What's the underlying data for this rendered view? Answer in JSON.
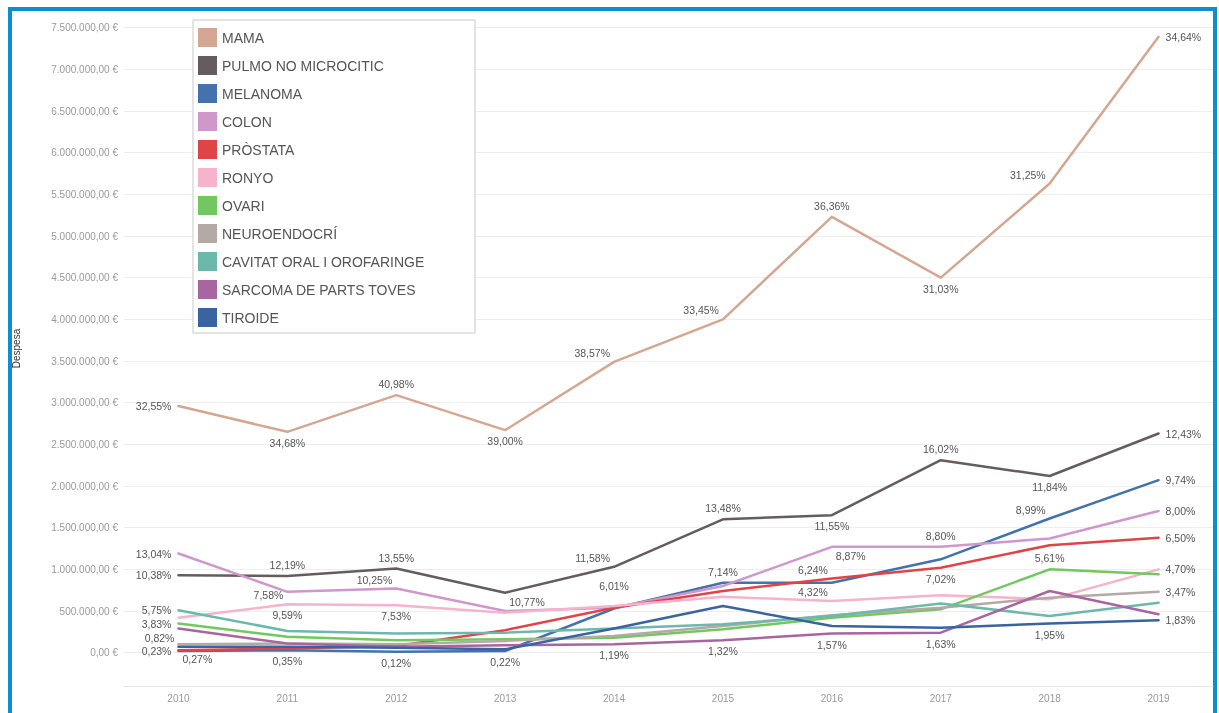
{
  "chart_data": {
    "type": "line",
    "ylabel": "Despesa",
    "categories": [
      "2010",
      "2011",
      "2012",
      "2013",
      "2014",
      "2015",
      "2016",
      "2017",
      "2018",
      "2019"
    ],
    "ylim": [
      -400000,
      7700000
    ],
    "yticks": [
      {
        "value": 0,
        "label": "0,00 €"
      },
      {
        "value": 500000,
        "label": "500.000,00 €"
      },
      {
        "value": 1000000,
        "label": "1.000.000,00 €"
      },
      {
        "value": 1500000,
        "label": "1.500.000,00 €"
      },
      {
        "value": 2000000,
        "label": "2.000.000,00 €"
      },
      {
        "value": 2500000,
        "label": "2.500.000,00 €"
      },
      {
        "value": 3000000,
        "label": "3.000.000,00 €"
      },
      {
        "value": 3500000,
        "label": "3.500.000,00 €"
      },
      {
        "value": 4000000,
        "label": "4.000.000,00 €"
      },
      {
        "value": 4500000,
        "label": "4.500.000,00 €"
      },
      {
        "value": 5000000,
        "label": "5.000.000,00 €"
      },
      {
        "value": 5500000,
        "label": "5.500.000,00 €"
      },
      {
        "value": 6000000,
        "label": "6.000.000,00 €"
      },
      {
        "value": 6500000,
        "label": "6.500.000,00 €"
      },
      {
        "value": 7000000,
        "label": "7.000.000,00 €"
      },
      {
        "value": 7500000,
        "label": "7.500.000,00 €"
      }
    ],
    "grid": "y",
    "legend": "top left",
    "series": [
      {
        "name": "MAMA",
        "color": "#d4a792",
        "values": [
          2960000,
          2650000,
          3090000,
          2670000,
          3490000,
          4000000,
          5230000,
          4500000,
          5630000,
          7390000
        ]
      },
      {
        "name": "PULMO NO MICROCITIC",
        "color": "#655d5d",
        "values": [
          930000,
          920000,
          1010000,
          720000,
          1030000,
          1600000,
          1650000,
          2310000,
          2120000,
          2630000
        ]
      },
      {
        "name": "MELANOMA",
        "color": "#4472ac",
        "values": [
          20000,
          30000,
          10000,
          20000,
          530000,
          840000,
          840000,
          1120000,
          1610000,
          2070000
        ]
      },
      {
        "name": "COLON",
        "color": "#cf97cc",
        "values": [
          1190000,
          730000,
          770000,
          500000,
          540000,
          800000,
          1270000,
          1270000,
          1370000,
          1700000
        ]
      },
      {
        "name": "PRÒSTATA",
        "color": "#e04446",
        "values": [
          30000,
          50000,
          80000,
          270000,
          540000,
          740000,
          890000,
          1020000,
          1290000,
          1380000
        ]
      },
      {
        "name": "RONYO",
        "color": "#f5b3cc",
        "values": [
          420000,
          580000,
          570000,
          480000,
          560000,
          670000,
          620000,
          690000,
          640000,
          1000000
        ]
      },
      {
        "name": "OVARI",
        "color": "#72c75f",
        "values": [
          350000,
          190000,
          150000,
          160000,
          180000,
          280000,
          420000,
          520000,
          1000000,
          940000
        ]
      },
      {
        "name": "NEUROENDOCRÍ",
        "color": "#b3aaa6",
        "values": [
          100000,
          110000,
          100000,
          140000,
          200000,
          320000,
          450000,
          540000,
          660000,
          730000
        ]
      },
      {
        "name": "CAVITAT ORAL I OROFARINGE",
        "color": "#6db8ac",
        "values": [
          510000,
          260000,
          230000,
          240000,
          290000,
          340000,
          440000,
          590000,
          440000,
          600000
        ]
      },
      {
        "name": "SARCOMA DE PARTS TOVES",
        "color": "#a8659f",
        "values": [
          290000,
          110000,
          70000,
          90000,
          100000,
          150000,
          230000,
          240000,
          740000,
          460000
        ]
      },
      {
        "name": "TIROIDE",
        "color": "#3a63a2",
        "values": [
          70000,
          70000,
          60000,
          40000,
          290000,
          560000,
          320000,
          300000,
          350000,
          390000
        ]
      }
    ],
    "annotations": [
      {
        "text": "32,55%",
        "x": "2010",
        "y": 2960000
      },
      {
        "text": "34,68%",
        "x": "2011",
        "y": 2650000
      },
      {
        "text": "40,98%",
        "x": "2012",
        "y": 3090000
      },
      {
        "text": "39,00%",
        "x": "2013",
        "y": 2670000
      },
      {
        "text": "38,57%",
        "x": "2014",
        "y": 3490000
      },
      {
        "text": "33,45%",
        "x": "2015",
        "y": 4000000
      },
      {
        "text": "36,36%",
        "x": "2016",
        "y": 5230000
      },
      {
        "text": "31,03%",
        "x": "2017",
        "y": 4500000
      },
      {
        "text": "31,25%",
        "x": "2018",
        "y": 5630000
      },
      {
        "text": "34,64%",
        "x": "2019",
        "y": 7390000
      },
      {
        "text": "10,38%",
        "x": "2010",
        "y": 930000
      },
      {
        "text": "12,19%",
        "x": "2011",
        "y": 920000
      },
      {
        "text": "13,55%",
        "x": "2012",
        "y": 1010000
      },
      {
        "text": "10,77%",
        "x": "2013",
        "y": 720000
      },
      {
        "text": "11,58%",
        "x": "2014",
        "y": 1030000
      },
      {
        "text": "13,48%",
        "x": "2015",
        "y": 1600000
      },
      {
        "text": "11,55%",
        "x": "2016",
        "y": 1650000
      },
      {
        "text": "16,02%",
        "x": "2017",
        "y": 2310000
      },
      {
        "text": "11,84%",
        "x": "2018",
        "y": 2120000
      },
      {
        "text": "12,43%",
        "x": "2019",
        "y": 2630000
      },
      {
        "text": "0,23%",
        "x": "2010",
        "y": 20000
      },
      {
        "text": "0,35%",
        "x": "2011",
        "y": 30000
      },
      {
        "text": "0,12%",
        "x": "2012",
        "y": 10000
      },
      {
        "text": "0,22%",
        "x": "2013",
        "y": 20000
      },
      {
        "text": "6,01%",
        "x": "2014",
        "y": 530000
      },
      {
        "text": "7,14%",
        "x": "2015",
        "y": 840000
      },
      {
        "text": "8,99%",
        "x": "2018",
        "y": 1610000
      },
      {
        "text": "9,74%",
        "x": "2019",
        "y": 2070000
      },
      {
        "text": "13,04%",
        "x": "2010",
        "y": 1190000
      },
      {
        "text": "9,59%",
        "x": "2011",
        "y": 730000
      },
      {
        "text": "10,25%",
        "x": "2012",
        "y": 770000
      },
      {
        "text": "8,87%",
        "x": "2016",
        "y": 1270000
      },
      {
        "text": "8,80%",
        "x": "2017",
        "y": 1270000
      },
      {
        "text": "8,00%",
        "x": "2019",
        "y": 1700000
      },
      {
        "text": "0,27%",
        "x": "2010",
        "y": 30000
      },
      {
        "text": "6,24%",
        "x": "2016",
        "y": 890000
      },
      {
        "text": "7,02%",
        "x": "2017",
        "y": 1020000
      },
      {
        "text": "6,50%",
        "x": "2019",
        "y": 1380000
      },
      {
        "text": "7,58%",
        "x": "2011",
        "y": 580000
      },
      {
        "text": "7,53%",
        "x": "2012",
        "y": 570000
      },
      {
        "text": "4,32%",
        "x": "2016",
        "y": 620000
      },
      {
        "text": "4,70%",
        "x": "2019",
        "y": 1000000
      },
      {
        "text": "3,83%",
        "x": "2010",
        "y": 350000
      },
      {
        "text": "5,61%",
        "x": "2018",
        "y": 1000000
      },
      {
        "text": "3,47%",
        "x": "2019",
        "y": 730000
      },
      {
        "text": "5,75%",
        "x": "2010",
        "y": 510000
      },
      {
        "text": "1,19%",
        "x": "2014",
        "y": 100000
      },
      {
        "text": "1,32%",
        "x": "2015",
        "y": 150000
      },
      {
        "text": "1,57%",
        "x": "2016",
        "y": 230000
      },
      {
        "text": "1,63%",
        "x": "2017",
        "y": 240000
      },
      {
        "text": "0,82%",
        "x": "2010",
        "y": 70000
      },
      {
        "text": "1,95%",
        "x": "2018",
        "y": 350000
      },
      {
        "text": "1,83%",
        "x": "2019",
        "y": 390000
      }
    ]
  }
}
